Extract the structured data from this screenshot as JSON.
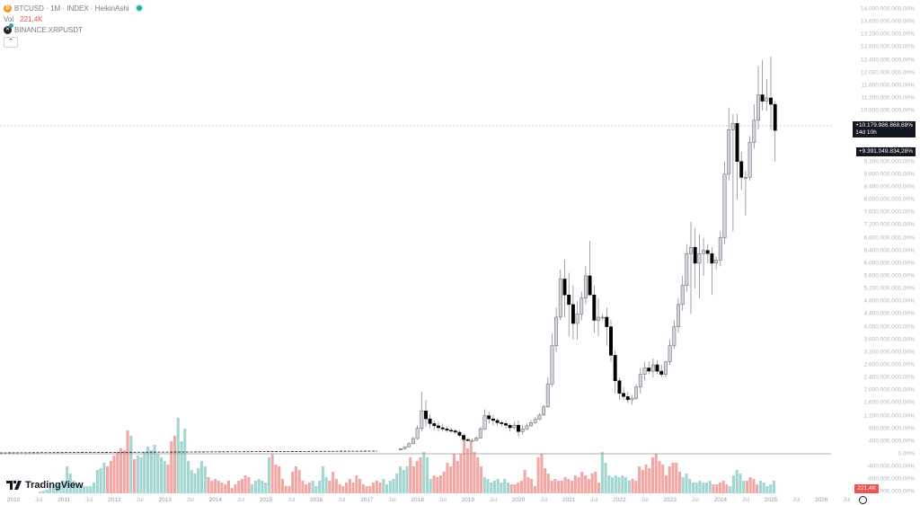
{
  "legend": {
    "symbol": "BTCUSD",
    "interval": "1M",
    "exchange": "INDEX",
    "chart_type": "HeikinAshi",
    "title": "BTCUSD · 1M · INDEX · HeikinAshi",
    "volume_label": "Vol",
    "volume_value": "221,4K",
    "compare_symbol": "BINANCE:XRPUSDT",
    "collapse_icon": "chevron-up-icon"
  },
  "price_tags": {
    "current": "+10.179.986.868,68%",
    "countdown": "14d 10h",
    "compare": "+9.391.049.834,28%"
  },
  "volume_tag": "221,4K",
  "colors": {
    "up_volume": "#a3d6d1",
    "down_volume": "#f2a7a5",
    "up_candle": "#d1d4dc",
    "down_candle": "#000000",
    "axis_text": "#b2b5be",
    "price_tag_bg": "#131722",
    "volume_tag_bg": "#ef5350"
  },
  "branding": "TradingView",
  "chart_data": {
    "type": "candlestick",
    "title": "BTCUSD · 1M · INDEX · HeikinAshi (percent scale) with Volume",
    "ylabel": "Percent change",
    "y_unit": "%",
    "ylim": [
      -1200000000,
      14000000000
    ],
    "y_ticks": [
      "14.000.000.000,00%",
      "13.600.000.000,00%",
      "13.200.000.000,00%",
      "12.800.000.000,00%",
      "12.400.000.000,00%",
      "12.000.000.000,00%",
      "11.600.000.000,00%",
      "11.200.000.000,00%",
      "10.800.000.000,00%",
      "10.400.000.000,00%",
      "9.600.000.000,00%",
      "9.200.000.000,00%",
      "8.800.000.000,00%",
      "8.400.000.000,00%",
      "8.000.000.000,00%",
      "7.600.000.000,00%",
      "7.200.000.000,00%",
      "6.800.000.000,00%",
      "6.400.000.000,00%",
      "6.000.000.000,00%",
      "5.600.000.000,00%",
      "5.200.000.000,00%",
      "4.800.000.000,00%",
      "4.400.000.000,00%",
      "4.000.000.000,00%",
      "3.600.000.000,00%",
      "3.200.000.000,00%",
      "2.800.000.000,00%",
      "2.400.000.000,00%",
      "2.000.000.000,00%",
      "1.600.000.000,00%",
      "1.200.000.000,00%",
      "800.000.000,00%",
      "400.000.000,00%",
      "0,00%",
      "-400.000.000,00%",
      "-800.000.000,00%",
      "-1.200.000.000,00%"
    ],
    "x_ticks": [
      "2010",
      "Jul",
      "2011",
      "Jul",
      "2012",
      "Jul",
      "2013",
      "Jul",
      "2014",
      "Jul",
      "2015",
      "Jul",
      "2016",
      "Jul",
      "2017",
      "Jul",
      "2018",
      "Jul",
      "2019",
      "Jul",
      "2020",
      "Jul",
      "2021",
      "Jul",
      "2022",
      "Jul",
      "2023",
      "Jul",
      "2024",
      "Jul",
      "2025",
      "Jul",
      "2026",
      "Jul"
    ],
    "grid": false,
    "legend_position": "top-left",
    "series_note": "Values in billions of percent; monthly Heikin Ashi candles [open, high, low, close]",
    "candles_start": "2017-09",
    "candles": [
      [
        0.12,
        0.18,
        0.1,
        0.16
      ],
      [
        0.16,
        0.24,
        0.14,
        0.22
      ],
      [
        0.22,
        0.36,
        0.2,
        0.32
      ],
      [
        0.32,
        0.54,
        0.3,
        0.48
      ],
      [
        0.48,
        0.9,
        0.44,
        0.8
      ],
      [
        0.8,
        1.95,
        0.7,
        1.35
      ],
      [
        1.35,
        1.7,
        0.85,
        1.1
      ],
      [
        1.1,
        1.25,
        0.8,
        0.95
      ],
      [
        0.95,
        1.05,
        0.75,
        0.88
      ],
      [
        0.88,
        1.0,
        0.7,
        0.82
      ],
      [
        0.82,
        0.95,
        0.7,
        0.78
      ],
      [
        0.78,
        0.86,
        0.68,
        0.74
      ],
      [
        0.74,
        0.82,
        0.66,
        0.72
      ],
      [
        0.72,
        0.78,
        0.62,
        0.68
      ],
      [
        0.68,
        0.75,
        0.52,
        0.58
      ],
      [
        0.58,
        0.64,
        0.4,
        0.45
      ],
      [
        0.45,
        0.5,
        0.38,
        0.42
      ],
      [
        0.42,
        0.48,
        0.38,
        0.42
      ],
      [
        0.42,
        0.55,
        0.4,
        0.5
      ],
      [
        0.5,
        0.85,
        0.48,
        0.78
      ],
      [
        0.78,
        1.4,
        0.75,
        1.2
      ],
      [
        1.2,
        1.32,
        0.95,
        1.1
      ],
      [
        1.1,
        1.22,
        0.9,
        1.05
      ],
      [
        1.05,
        1.12,
        0.88,
        0.98
      ],
      [
        0.98,
        1.05,
        0.85,
        0.95
      ],
      [
        0.95,
        1.02,
        0.8,
        0.9
      ],
      [
        0.9,
        0.95,
        0.7,
        0.82
      ],
      [
        0.82,
        1.0,
        0.78,
        0.9
      ],
      [
        0.9,
        1.05,
        0.55,
        0.7
      ],
      [
        0.7,
        0.9,
        0.6,
        0.78
      ],
      [
        0.78,
        0.95,
        0.75,
        0.88
      ],
      [
        0.88,
        1.05,
        0.85,
        0.98
      ],
      [
        0.98,
        1.15,
        0.95,
        1.08
      ],
      [
        1.08,
        1.28,
        1.05,
        1.22
      ],
      [
        1.22,
        1.55,
        1.2,
        1.48
      ],
      [
        1.48,
        2.4,
        1.45,
        2.2
      ],
      [
        2.2,
        3.8,
        2.1,
        3.4
      ],
      [
        3.4,
        4.6,
        3.2,
        4.3
      ],
      [
        4.3,
        5.8,
        4.2,
        5.5
      ],
      [
        5.5,
        6.1,
        4.3,
        5.0
      ],
      [
        5.0,
        5.7,
        3.7,
        4.7
      ],
      [
        4.7,
        5.3,
        3.6,
        4.1
      ],
      [
        4.1,
        4.8,
        3.6,
        4.4
      ],
      [
        4.4,
        5.1,
        4.2,
        4.9
      ],
      [
        4.9,
        5.9,
        4.7,
        5.6
      ],
      [
        5.6,
        6.7,
        5.2,
        5.0
      ],
      [
        5.0,
        5.3,
        3.8,
        4.2
      ],
      [
        4.2,
        4.9,
        3.7,
        4.3
      ],
      [
        4.3,
        4.4,
        4.2,
        4.3
      ],
      [
        4.3,
        4.6,
        3.4,
        4.0
      ],
      [
        4.0,
        4.2,
        2.9,
        3.1
      ],
      [
        3.1,
        3.25,
        1.9,
        2.3
      ],
      [
        2.3,
        2.4,
        1.7,
        1.9
      ],
      [
        1.9,
        2.1,
        1.7,
        1.8
      ],
      [
        1.8,
        1.95,
        1.6,
        1.7
      ],
      [
        1.7,
        1.85,
        1.55,
        1.75
      ],
      [
        1.75,
        2.2,
        1.7,
        2.1
      ],
      [
        2.1,
        2.7,
        1.9,
        2.5
      ],
      [
        2.5,
        2.9,
        2.3,
        2.7
      ],
      [
        2.7,
        2.9,
        2.5,
        2.6
      ],
      [
        2.6,
        3.0,
        2.4,
        2.8
      ],
      [
        2.8,
        2.95,
        2.5,
        2.6
      ],
      [
        2.6,
        2.8,
        2.4,
        2.5
      ],
      [
        2.5,
        2.8,
        2.4,
        2.9
      ],
      [
        2.9,
        3.6,
        2.8,
        3.4
      ],
      [
        3.4,
        4.2,
        3.3,
        4.0
      ],
      [
        4.0,
        4.9,
        3.8,
        4.7
      ],
      [
        4.7,
        5.6,
        4.5,
        5.3
      ],
      [
        5.3,
        6.6,
        5.1,
        6.3
      ],
      [
        6.3,
        7.3,
        4.4,
        6.5
      ],
      [
        6.5,
        7.1,
        5.2,
        6.0
      ],
      [
        6.0,
        6.9,
        4.9,
        6.3
      ],
      [
        6.3,
        6.8,
        5.6,
        6.4
      ],
      [
        6.4,
        6.6,
        6.0,
        6.3
      ],
      [
        6.3,
        6.5,
        5.0,
        6.0
      ],
      [
        6.0,
        6.2,
        5.8,
        6.1
      ],
      [
        6.1,
        7.0,
        5.9,
        6.8
      ],
      [
        6.8,
        9.2,
        6.6,
        8.8
      ],
      [
        8.8,
        10.9,
        8.6,
        10.2
      ],
      [
        10.2,
        10.7,
        7.0,
        10.4
      ],
      [
        10.4,
        10.7,
        8.0,
        9.2
      ],
      [
        9.2,
        9.5,
        8.3,
        8.7
      ],
      [
        8.7,
        8.9,
        7.5,
        8.7
      ],
      [
        8.7,
        10.0,
        8.6,
        9.8
      ],
      [
        9.8,
        11.0,
        9.6,
        10.5
      ],
      [
        10.5,
        12.2,
        10.2,
        11.3
      ],
      [
        11.3,
        12.4,
        10.8,
        11.1
      ],
      [
        11.1,
        11.8,
        10.8,
        11.2
      ],
      [
        11.2,
        12.5,
        10.2,
        11.0
      ],
      [
        11.0,
        11.1,
        9.2,
        10.18
      ]
    ],
    "volume_unit": "relative bar height (px above baseline)",
    "volume_note": "Monthly volume histogram at bottom; teal = up month, red = down month; last bar 221,4K"
  }
}
